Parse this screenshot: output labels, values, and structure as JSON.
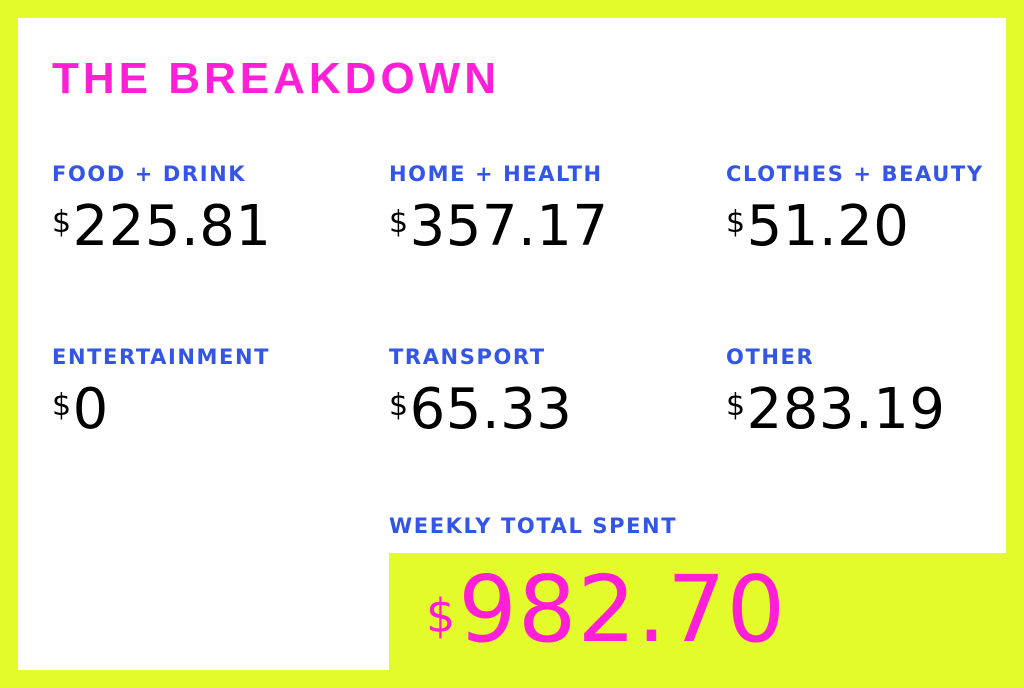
{
  "colors": {
    "background": "#e3fb2a",
    "panel": "#ffffff",
    "title": "#ff1fd6",
    "label": "#3355e8",
    "amount": "#000000",
    "total": "#ff1fd6"
  },
  "title": "THE BREAKDOWN",
  "currency_symbol": "$",
  "categories": [
    {
      "label": "FOOD + DRINK",
      "amount": "225.81"
    },
    {
      "label": "HOME + HEALTH",
      "amount": "357.17"
    },
    {
      "label": "CLOTHES + BEAUTY",
      "amount": "51.20"
    },
    {
      "label": "ENTERTAINMENT",
      "amount": "0"
    },
    {
      "label": "TRANSPORT",
      "amount": "65.33"
    },
    {
      "label": "OTHER",
      "amount": "283.19"
    }
  ],
  "total": {
    "label": "WEEKLY TOTAL SPENT",
    "amount": "982.70"
  }
}
